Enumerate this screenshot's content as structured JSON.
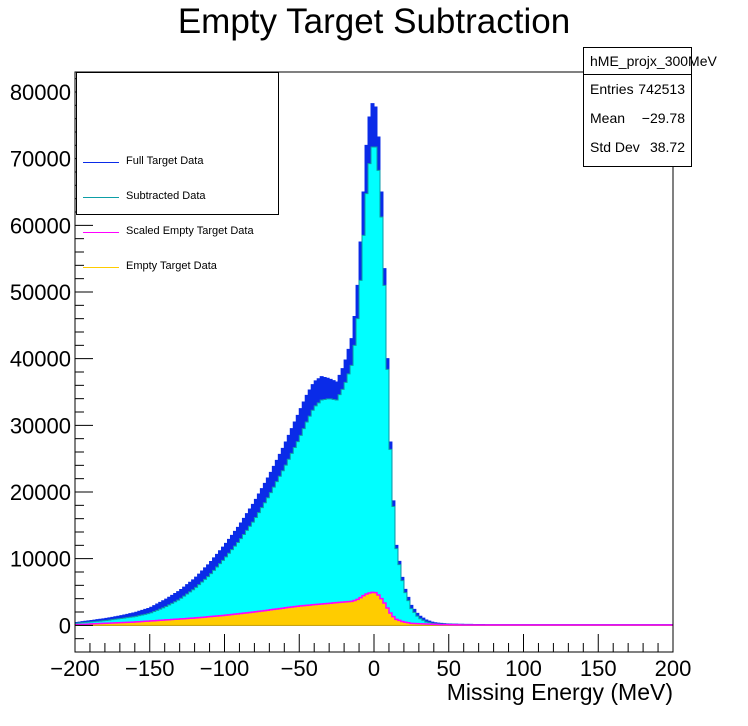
{
  "chart_data": {
    "type": "histogram",
    "title": "Empty Target Subtraction",
    "xlabel": "Missing Energy (MeV)",
    "ylabel": "",
    "xlim": [
      -200,
      200
    ],
    "ylim": [
      -4000,
      83000
    ],
    "x_ticks": [
      "−200",
      "−150",
      "−100",
      "−50",
      "0",
      "50",
      "100",
      "150",
      "200"
    ],
    "x_tick_values": [
      -200,
      -150,
      -100,
      -50,
      0,
      50,
      100,
      150,
      200
    ],
    "y_ticks": [
      "0",
      "10000",
      "20000",
      "30000",
      "40000",
      "50000",
      "60000",
      "70000",
      "80000"
    ],
    "y_tick_values": [
      0,
      10000,
      20000,
      30000,
      40000,
      50000,
      60000,
      70000,
      80000
    ],
    "grid": false,
    "legend_position": "top-left",
    "colors": {
      "full": "#0a2be8",
      "subtracted": "#00ffff",
      "scaled_empty": "#ff00ff",
      "empty": "#ffcc00"
    },
    "series": [
      {
        "name": "Full Target Data",
        "x": [
          -200,
          -190,
          -180,
          -170,
          -160,
          -150,
          -140,
          -130,
          -120,
          -110,
          -100,
          -90,
          -80,
          -70,
          -60,
          -50,
          -45,
          -40,
          -35,
          -30,
          -25,
          -20,
          -15,
          -12,
          -10,
          -8,
          -6,
          -4,
          -2,
          0,
          2,
          4,
          6,
          8,
          10,
          12,
          15,
          20,
          25,
          30,
          35,
          40,
          45,
          50,
          60,
          80,
          100,
          150,
          200
        ],
        "values": [
          400,
          700,
          1000,
          1400,
          1900,
          2600,
          3800,
          5200,
          7000,
          9300,
          12000,
          15000,
          18500,
          22500,
          27000,
          32000,
          34500,
          36500,
          37300,
          37000,
          36500,
          39000,
          43000,
          48000,
          54000,
          61000,
          69000,
          75000,
          77500,
          79000,
          76500,
          70000,
          60000,
          47000,
          33000,
          22000,
          12000,
          6000,
          3000,
          1500,
          800,
          400,
          300,
          200,
          150,
          100,
          100,
          100,
          100
        ]
      },
      {
        "name": "Subtracted Data",
        "x": [
          -200,
          -190,
          -180,
          -170,
          -160,
          -150,
          -140,
          -130,
          -120,
          -110,
          -100,
          -90,
          -80,
          -70,
          -60,
          -50,
          -45,
          -40,
          -35,
          -30,
          -25,
          -20,
          -15,
          -12,
          -10,
          -8,
          -6,
          -4,
          -2,
          0,
          2,
          4,
          6,
          8,
          10,
          12,
          15,
          20,
          25,
          30,
          35,
          40,
          45,
          50,
          60,
          80,
          100,
          150,
          200
        ],
        "values": [
          300,
          500,
          700,
          1000,
          1300,
          1800,
          2700,
          3900,
          5500,
          7500,
          10000,
          12700,
          15800,
          19500,
          23600,
          28000,
          30500,
          32700,
          33800,
          34000,
          33800,
          35800,
          39000,
          43500,
          48500,
          55000,
          62000,
          67500,
          71000,
          72500,
          71000,
          65500,
          57000,
          45000,
          31800,
          21000,
          11500,
          5500,
          2500,
          1100,
          500,
          250,
          200,
          150,
          100,
          50,
          50,
          50,
          50
        ]
      },
      {
        "name": "Scaled Empty Target Data",
        "x": [
          -200,
          -190,
          -180,
          -170,
          -160,
          -150,
          -140,
          -130,
          -120,
          -110,
          -100,
          -90,
          -80,
          -70,
          -60,
          -50,
          -45,
          -40,
          -35,
          -30,
          -25,
          -20,
          -15,
          -12,
          -10,
          -8,
          -6,
          -4,
          -2,
          0,
          2,
          4,
          6,
          8,
          10,
          12,
          15,
          20,
          25,
          30,
          35,
          40,
          45,
          50,
          60,
          80,
          100,
          150,
          200
        ],
        "values": [
          100,
          200,
          300,
          400,
          500,
          650,
          800,
          950,
          1100,
          1300,
          1500,
          1750,
          2000,
          2300,
          2600,
          2900,
          3000,
          3100,
          3200,
          3300,
          3400,
          3500,
          3600,
          3800,
          4000,
          4300,
          4600,
          4800,
          4900,
          5000,
          4800,
          4300,
          3700,
          3000,
          2200,
          1500,
          900,
          500,
          300,
          250,
          200,
          150,
          100,
          100,
          50,
          50,
          50,
          50,
          50
        ]
      },
      {
        "name": "Empty Target Data",
        "x": [
          -200,
          -190,
          -180,
          -170,
          -160,
          -150,
          -140,
          -130,
          -120,
          -110,
          -100,
          -90,
          -80,
          -70,
          -60,
          -50,
          -45,
          -40,
          -35,
          -30,
          -25,
          -20,
          -15,
          -12,
          -10,
          -8,
          -6,
          -4,
          -2,
          0,
          2,
          4,
          6,
          8,
          10,
          12,
          15,
          20,
          25,
          30,
          35,
          40,
          45,
          50,
          60,
          80,
          100,
          150,
          200
        ],
        "values": [
          100,
          200,
          300,
          400,
          500,
          650,
          800,
          950,
          1100,
          1300,
          1500,
          1750,
          2000,
          2300,
          2600,
          2900,
          3000,
          3100,
          3200,
          3300,
          3400,
          3500,
          3600,
          3800,
          4000,
          4300,
          4600,
          4800,
          4900,
          5000,
          4800,
          4300,
          3700,
          3000,
          2200,
          1500,
          900,
          500,
          300,
          250,
          200,
          150,
          100,
          100,
          50,
          50,
          50,
          50,
          50
        ]
      }
    ]
  },
  "stats_box": {
    "name": "hME_projx_300MeV",
    "entries_label": "Entries",
    "entries_value": "742513",
    "mean_label": "Mean",
    "mean_value": "−29.78",
    "stddev_label": "Std Dev",
    "stddev_value": "38.72"
  }
}
